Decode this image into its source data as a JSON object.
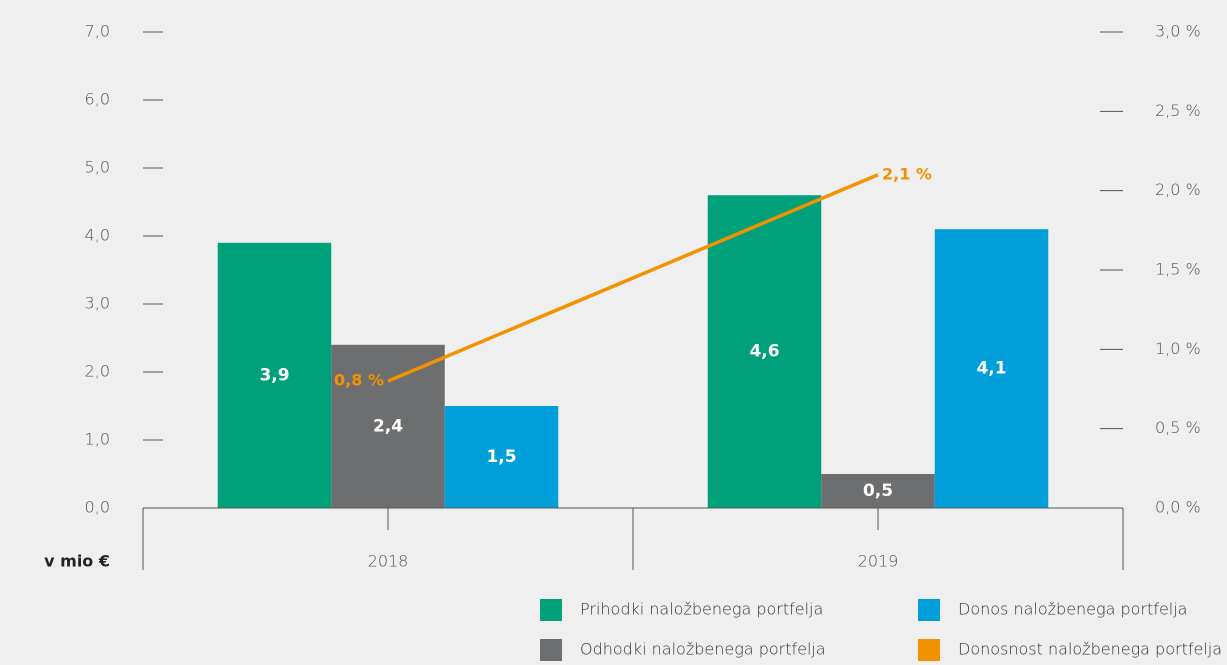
{
  "chart_data": {
    "type": "bar",
    "ylabel": "v mio €",
    "categories": [
      "2018",
      "2019"
    ],
    "series": [
      {
        "name": "Prihodki naložbenega portfelja",
        "color": "#00a07a",
        "values": [
          3.9,
          4.6
        ],
        "value_labels": [
          "3,9",
          "4,6"
        ]
      },
      {
        "name": "Odhodki naložbenega portfelja",
        "color": "#6d6e70",
        "values": [
          2.4,
          0.5
        ],
        "value_labels": [
          "2,4",
          "0,5"
        ]
      },
      {
        "name": "Donos naložbenega portfelja",
        "color": "#009fd9",
        "values": [
          1.5,
          4.1
        ],
        "value_labels": [
          "1,5",
          "4,1"
        ]
      },
      {
        "name": "Donosnost naložbenega portfelja",
        "color": "#f39200",
        "type": "line",
        "axis": "y2",
        "values": [
          0.8,
          2.1
        ],
        "value_labels": [
          "0,8 %",
          "2,1 %"
        ]
      }
    ],
    "ylim": [
      0,
      7
    ],
    "yticks": [
      {
        "value": 0,
        "label": "0,0"
      },
      {
        "value": 1,
        "label": "1,0"
      },
      {
        "value": 2,
        "label": "2,0"
      },
      {
        "value": 3,
        "label": "3,0"
      },
      {
        "value": 4,
        "label": "4,0"
      },
      {
        "value": 5,
        "label": "5,0"
      },
      {
        "value": 6,
        "label": "6,0"
      },
      {
        "value": 7,
        "label": "7,0"
      }
    ],
    "y2lim": [
      0,
      3
    ],
    "y2ticks": [
      {
        "value": 0,
        "label": "0,0 %"
      },
      {
        "value": 0.5,
        "label": "0,5 %"
      },
      {
        "value": 1,
        "label": "1,0 %"
      },
      {
        "value": 1.5,
        "label": "1,5 %"
      },
      {
        "value": 2,
        "label": "2,0 %"
      },
      {
        "value": 2.5,
        "label": "2,5 %"
      },
      {
        "value": 3,
        "label": "3,0 %"
      }
    ]
  }
}
